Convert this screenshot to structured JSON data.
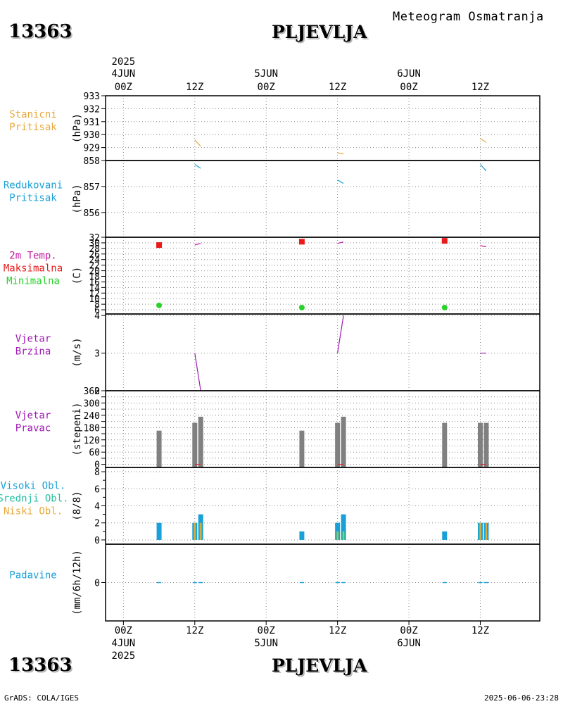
{
  "header": {
    "station_id": "13363",
    "station_name": "PLJEVLJA",
    "product": "Meteogram Osmatranja",
    "footer_left": "GrADS: COLA/IGES",
    "footer_right": "2025-06-06-23:28"
  },
  "colors": {
    "station_pressure": "#e8a83c",
    "reduced_pressure": "#1aa0d8",
    "tmax": "#e81a1a",
    "tmin": "#2ad22a",
    "wind": "#a01ab4",
    "bars_gray": "#808080",
    "cloud_high": "#1aa0d8",
    "cloud_mid": "#20c0a0",
    "cloud_low": "#e8a83c",
    "precip": "#1aa0d8"
  },
  "time_axis": {
    "top": {
      "year": "2025",
      "ticks": [
        {
          "hour": 0,
          "label": "00Z",
          "date": "4JUN"
        },
        {
          "hour": 12,
          "label": "12Z",
          "date": ""
        },
        {
          "hour": 24,
          "label": "00Z",
          "date": "5JUN"
        },
        {
          "hour": 36,
          "label": "12Z",
          "date": ""
        },
        {
          "hour": 48,
          "label": "00Z",
          "date": "6JUN"
        },
        {
          "hour": 60,
          "label": "12Z",
          "date": ""
        }
      ]
    },
    "bottom": {
      "year": "2025",
      "ticks": [
        {
          "hour": 0,
          "label": "00Z",
          "date": "4JUN"
        },
        {
          "hour": 12,
          "label": "12Z",
          "date": ""
        },
        {
          "hour": 24,
          "label": "00Z",
          "date": "5JUN"
        },
        {
          "hour": 36,
          "label": "12Z",
          "date": ""
        },
        {
          "hour": 48,
          "label": "00Z",
          "date": "6JUN"
        },
        {
          "hour": 60,
          "label": "12Z",
          "date": ""
        }
      ]
    },
    "xlim_hours": [
      -3,
      70
    ]
  },
  "chart_data": [
    {
      "type": "line",
      "title": "Stanicni Pritisak",
      "labels": [
        "Stanicni",
        "Pritisak"
      ],
      "label_colors": [
        "#e8a83c",
        "#e8a83c"
      ],
      "ylabel": "(hPa)",
      "ylim": [
        928,
        933
      ],
      "yticks": [
        929,
        930,
        931,
        932,
        933
      ],
      "series": [
        {
          "name": "station pressure",
          "color": "#e8a83c",
          "segments": [
            [
              [
                12,
                929.6
              ],
              [
                13,
                929.1
              ]
            ],
            [
              [
                36,
                928.6
              ],
              [
                37,
                928.5
              ]
            ],
            [
              [
                60,
                929.7
              ],
              [
                61,
                929.4
              ]
            ]
          ]
        }
      ]
    },
    {
      "type": "line",
      "title": "Redukovani Pritisak",
      "labels": [
        "Redukovani",
        "Pritisak"
      ],
      "label_colors": [
        "#1aa0d8",
        "#1aa0d8"
      ],
      "ylabel": "(hPa)",
      "ylim": [
        855.05,
        858
      ],
      "yticks": [
        856,
        857,
        858
      ],
      "series": [
        {
          "name": "reduced pressure",
          "color": "#1aa0d8",
          "segments": [
            [
              [
                12,
                857.85
              ],
              [
                13,
                857.7
              ]
            ],
            [
              [
                36,
                857.25
              ],
              [
                37,
                857.12
              ]
            ],
            [
              [
                60,
                857.85
              ],
              [
                61,
                857.6
              ]
            ]
          ]
        }
      ]
    },
    {
      "type": "line",
      "title": "2m Temp. Maksimalna Minimalna",
      "labels": [
        "2m Temp.",
        "Maksimalna",
        "Minimalna"
      ],
      "label_colors": [
        "#c0189c",
        "#e81a1a",
        "#2ad22a"
      ],
      "ylabel": "(C)",
      "ylim": [
        4.5,
        32
      ],
      "yticks": [
        6,
        8,
        10,
        12,
        14,
        16,
        18,
        20,
        22,
        24,
        26,
        28,
        30,
        32
      ],
      "series": [
        {
          "name": "2m temperature",
          "color": "#c0189c",
          "segments": [
            [
              [
                12,
                29.2
              ],
              [
                13,
                29.8
              ]
            ],
            [
              [
                36,
                29.8
              ],
              [
                37,
                30.3
              ]
            ],
            [
              [
                60,
                29.0
              ],
              [
                61,
                28.6
              ]
            ]
          ]
        }
      ],
      "tmax": [
        {
          "hour": 6,
          "value": 29.2
        },
        {
          "hour": 30,
          "value": 30.4
        },
        {
          "hour": 54,
          "value": 30.7
        }
      ],
      "tmin": [
        {
          "hour": 6,
          "value": 7.6
        },
        {
          "hour": 30,
          "value": 6.8
        },
        {
          "hour": 54,
          "value": 6.8
        }
      ]
    },
    {
      "type": "line",
      "title": "Vjetar Brzina",
      "labels": [
        "Vjetar",
        "Brzina"
      ],
      "label_colors": [
        "#a01ab4",
        "#a01ab4"
      ],
      "ylabel": "(m/s)",
      "ylim": [
        2,
        4.04
      ],
      "yticks": [
        2,
        3,
        4
      ],
      "series": [
        {
          "name": "wind speed",
          "color": "#a01ab4",
          "segments": [
            [
              [
                12,
                3.0
              ],
              [
                13,
                2.0
              ]
            ],
            [
              [
                36,
                3.0
              ],
              [
                37,
                4.0
              ]
            ],
            [
              [
                60,
                3.0
              ],
              [
                61,
                3.0
              ]
            ]
          ]
        }
      ]
    },
    {
      "type": "bar",
      "title": "Vjetar Pravac",
      "labels": [
        "Vjetar",
        "Pravac"
      ],
      "label_colors": [
        "#a01ab4",
        "#a01ab4"
      ],
      "ylabel": "(stepeni)",
      "ylim": [
        -15,
        360
      ],
      "yticks": [
        0,
        30,
        60,
        90,
        120,
        150,
        180,
        210,
        240,
        270,
        300,
        330,
        360
      ],
      "ytick_labels": [
        "0",
        "",
        "60",
        "",
        "120",
        "",
        "180",
        "",
        "240",
        "",
        "300",
        "",
        "360"
      ],
      "bars": [
        {
          "hour": 6,
          "value": 165
        },
        {
          "hour": 12,
          "value": 203
        },
        {
          "hour": 13,
          "value": 233
        },
        {
          "hour": 30,
          "value": 165
        },
        {
          "hour": 36,
          "value": 203
        },
        {
          "hour": 37,
          "value": 233
        },
        {
          "hour": 54,
          "value": 203
        },
        {
          "hour": 60,
          "value": 203
        },
        {
          "hour": 61,
          "value": 203
        }
      ],
      "marks": [
        12.5,
        36.5,
        60.5
      ]
    },
    {
      "type": "bar",
      "title": "Visoki Obl. Srednji Obl. Niski Obl.",
      "labels": [
        "Visoki Obl.",
        "Srednji Obl.",
        "Niski Obl."
      ],
      "label_colors": [
        "#1aa0d8",
        "#20c0a0",
        "#e8a83c"
      ],
      "ylabel": "(8/8)",
      "ylim": [
        -0.5,
        8.5
      ],
      "yticks": [
        0,
        2,
        4,
        6,
        8
      ],
      "minor_yticks": [
        1,
        3,
        5,
        7
      ],
      "bars": [
        {
          "hour": 6,
          "high": 2,
          "mid": 0,
          "low": 0
        },
        {
          "hour": 12,
          "high": 2,
          "mid": 2,
          "low": 2
        },
        {
          "hour": 13,
          "high": 3,
          "mid": 2,
          "low": 2
        },
        {
          "hour": 30,
          "high": 1,
          "mid": 0,
          "low": 0
        },
        {
          "hour": 36,
          "high": 2,
          "mid": 1,
          "low": 1
        },
        {
          "hour": 37,
          "high": 3,
          "mid": 1,
          "low": 1
        },
        {
          "hour": 54,
          "high": 1,
          "mid": 0,
          "low": 0
        },
        {
          "hour": 60,
          "high": 2,
          "mid": 2,
          "low": 2
        },
        {
          "hour": 61,
          "high": 2,
          "mid": 1,
          "low": 2
        }
      ]
    },
    {
      "type": "bar",
      "title": "Padavine",
      "labels": [
        "Padavine"
      ],
      "label_colors": [
        "#1aa0d8"
      ],
      "ylabel": "(mm/6h/12h)",
      "ylim": [
        -1,
        1
      ],
      "yticks": [
        0
      ],
      "values": [
        {
          "hour": 6,
          "value": 0
        },
        {
          "hour": 12,
          "value": 0
        },
        {
          "hour": 13,
          "value": 0
        },
        {
          "hour": 30,
          "value": 0
        },
        {
          "hour": 36,
          "value": 0
        },
        {
          "hour": 37,
          "value": 0
        },
        {
          "hour": 54,
          "value": 0
        },
        {
          "hour": 60,
          "value": 0
        },
        {
          "hour": 61,
          "value": 0
        }
      ]
    }
  ]
}
